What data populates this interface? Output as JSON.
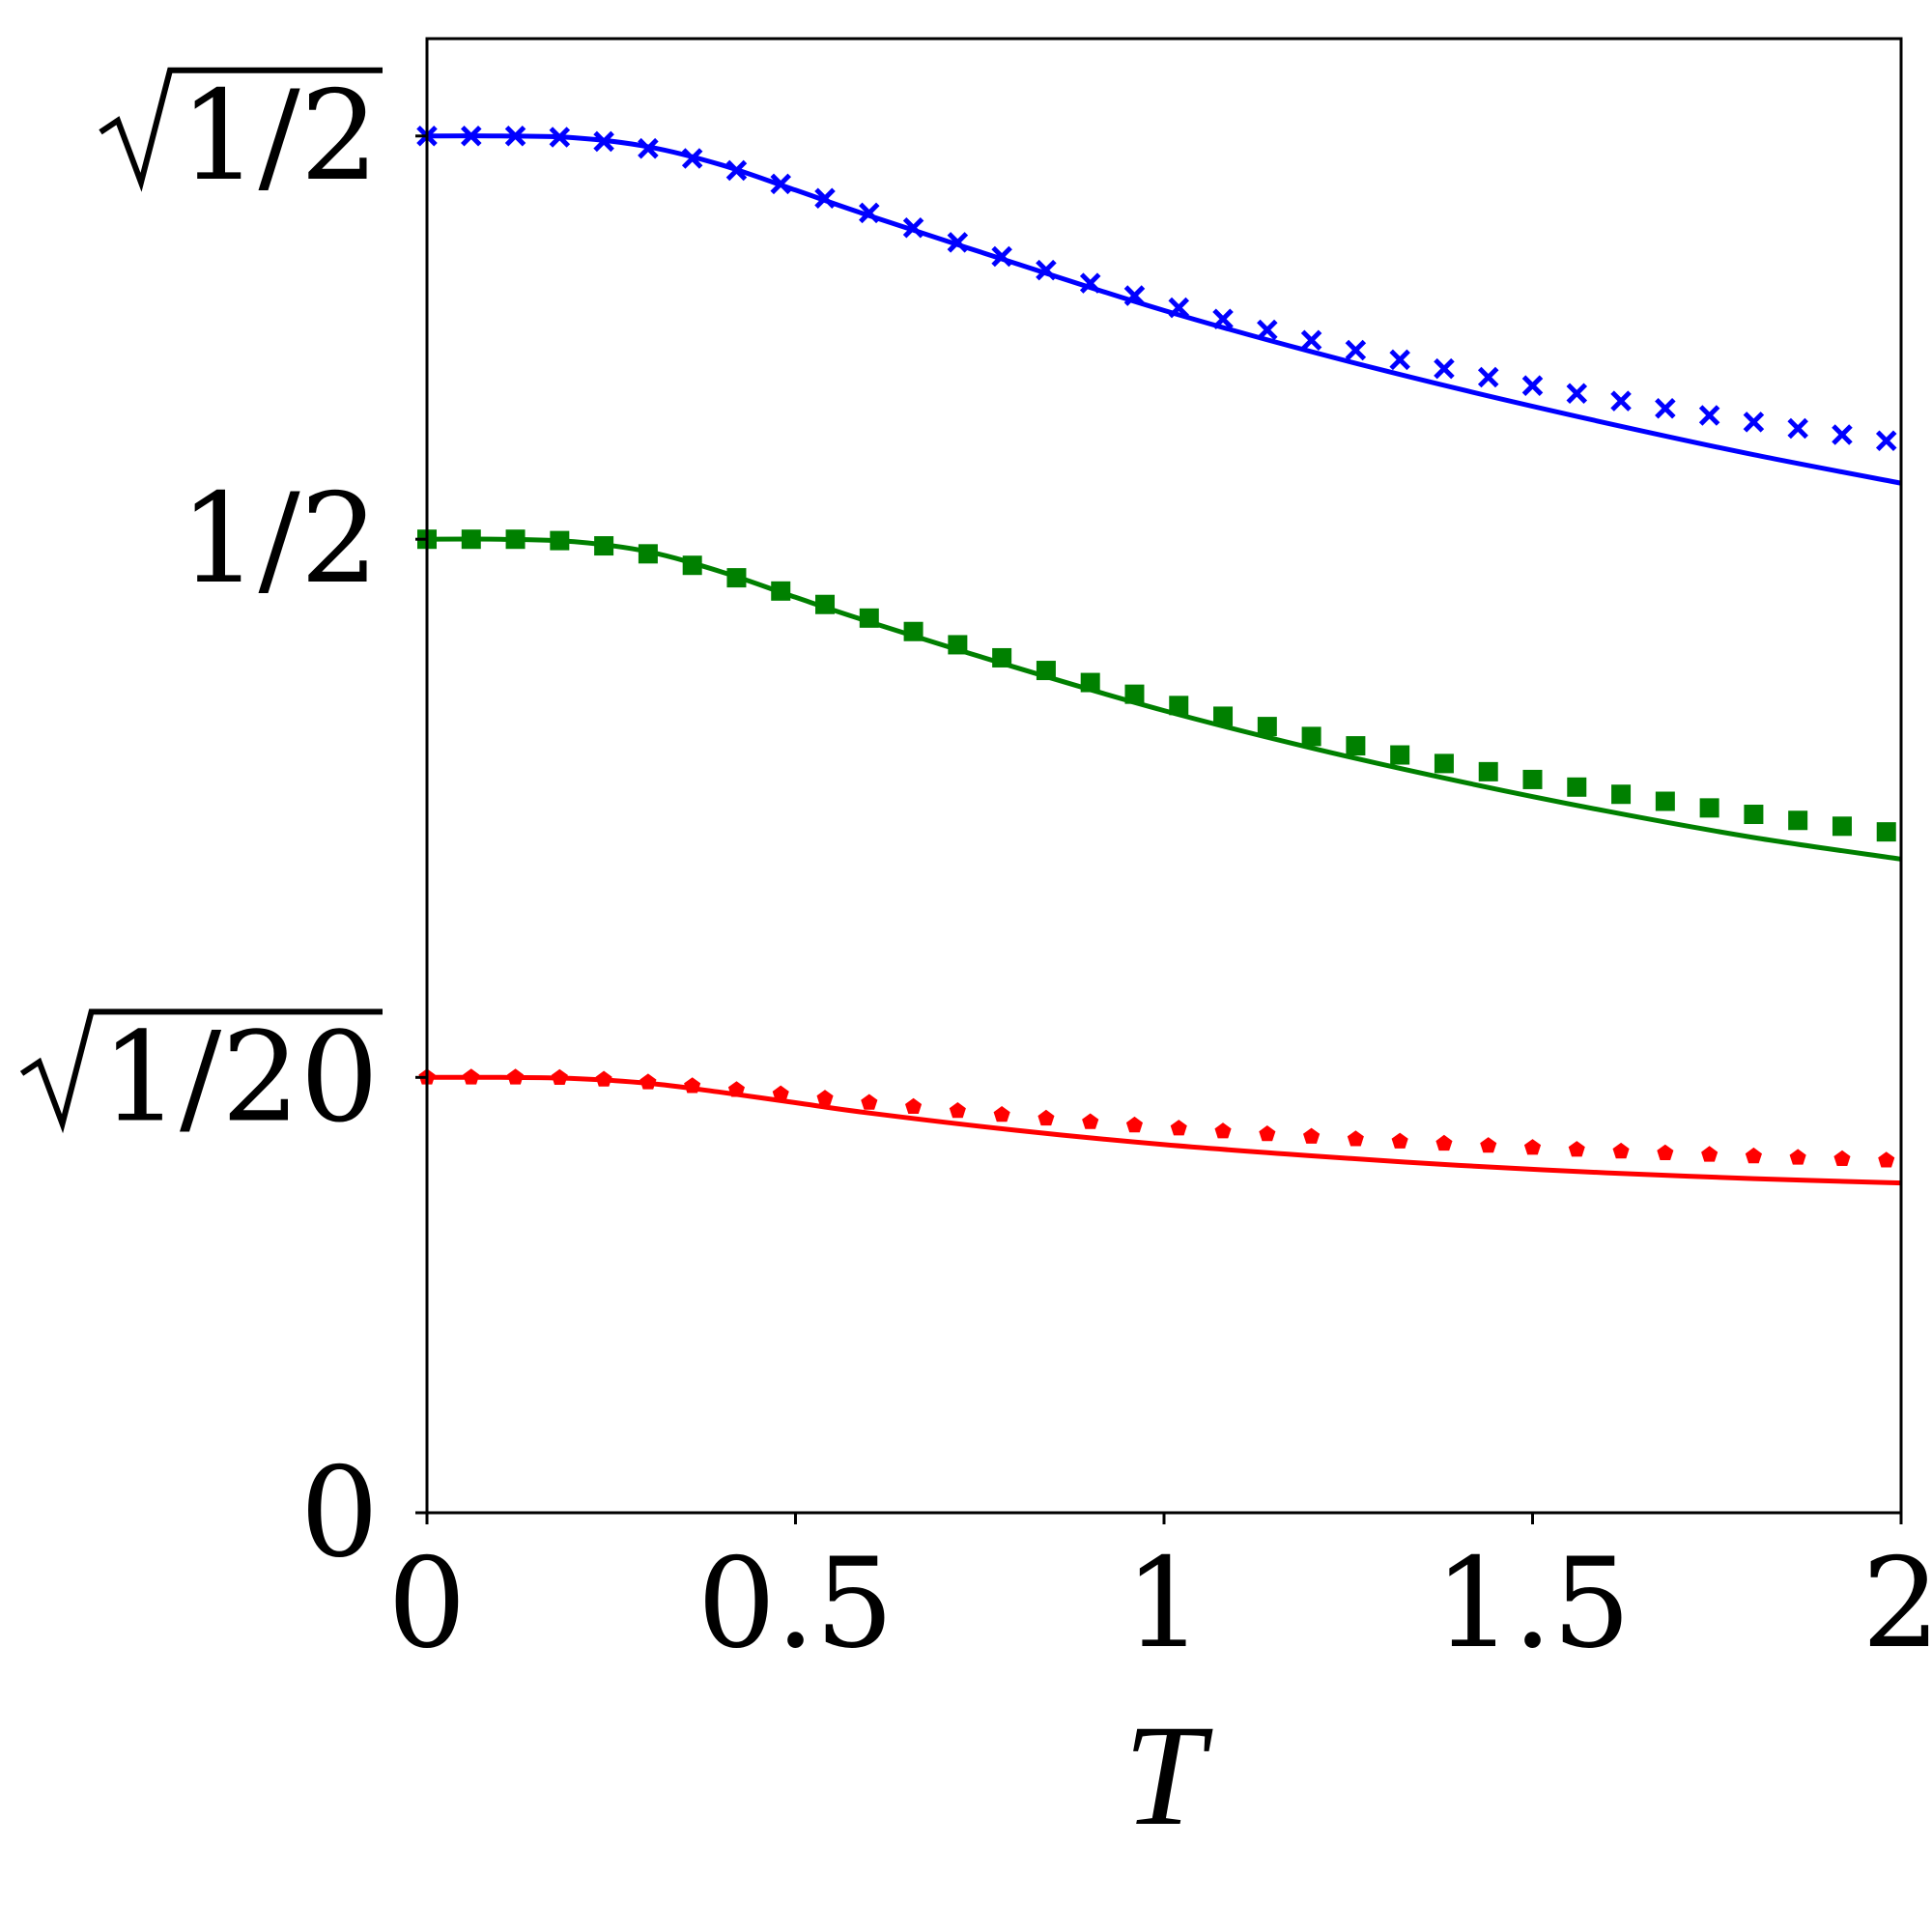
{
  "chart_data": {
    "type": "line",
    "title": "",
    "xlabel": "T",
    "ylabel": "",
    "xlim": [
      0,
      2
    ],
    "ylim": [
      0,
      0.7571
    ],
    "grid": false,
    "legend": "none",
    "xticks": [
      {
        "value": 0,
        "label": "0"
      },
      {
        "value": 0.5,
        "label": "0.5"
      },
      {
        "value": 1,
        "label": "1"
      },
      {
        "value": 1.5,
        "label": "1.5"
      },
      {
        "value": 2,
        "label": "2"
      }
    ],
    "yticks": [
      {
        "value": 0,
        "label": "0",
        "radical": false
      },
      {
        "value": 0.2236,
        "label": "1/20",
        "radical": true
      },
      {
        "value": 0.5,
        "label": "1/2",
        "radical": false
      },
      {
        "value": 0.7071,
        "label": "1/2",
        "radical": true
      }
    ],
    "curves": [
      {
        "color": "#0000ff",
        "style": "solid",
        "x": [
          0,
          0.1,
          0.2,
          0.3,
          0.4,
          0.5,
          0.6,
          0.8,
          1.0,
          1.2,
          1.4,
          1.6,
          1.8,
          2.0
        ],
        "y": [
          0.7071,
          0.7071,
          0.7062,
          0.7016,
          0.6922,
          0.6793,
          0.6662,
          0.6415,
          0.6175,
          0.5963,
          0.5772,
          0.5597,
          0.5434,
          0.5288
        ]
      },
      {
        "color": "#008000",
        "style": "solid",
        "x": [
          0,
          0.1,
          0.2,
          0.3,
          0.4,
          0.5,
          0.6,
          0.8,
          1.0,
          1.2,
          1.4,
          1.6,
          1.8,
          2.0
        ],
        "y": [
          0.5,
          0.5,
          0.4987,
          0.4936,
          0.4832,
          0.4702,
          0.4576,
          0.434,
          0.412,
          0.3928,
          0.3757,
          0.3604,
          0.3468,
          0.3357
        ]
      },
      {
        "color": "#ff0000",
        "style": "solid",
        "x": [
          0,
          0.1,
          0.2,
          0.3,
          0.4,
          0.5,
          0.6,
          0.8,
          1.0,
          1.2,
          1.4,
          1.6,
          1.8,
          2.0
        ],
        "y": [
          0.2236,
          0.2236,
          0.223,
          0.2206,
          0.2159,
          0.2106,
          0.2053,
          0.1964,
          0.1891,
          0.1833,
          0.1784,
          0.1746,
          0.1716,
          0.1694
        ]
      }
    ],
    "markers": [
      {
        "color": "#0000ff",
        "shape": "x",
        "x": [
          0,
          0.06,
          0.12,
          0.18,
          0.24,
          0.3,
          0.36,
          0.42,
          0.48,
          0.54,
          0.6,
          0.66,
          0.72,
          0.78,
          0.84,
          0.9,
          0.96,
          1.02,
          1.08,
          1.14,
          1.2,
          1.26,
          1.32,
          1.38,
          1.44,
          1.5,
          1.56,
          1.62,
          1.68,
          1.74,
          1.8,
          1.86,
          1.92,
          1.98
        ],
        "y": [
          0.7071,
          0.7071,
          0.7071,
          0.7065,
          0.7043,
          0.7007,
          0.6956,
          0.6894,
          0.6825,
          0.6751,
          0.6676,
          0.66,
          0.6525,
          0.6452,
          0.6382,
          0.6315,
          0.6251,
          0.6189,
          0.6131,
          0.6075,
          0.6022,
          0.5971,
          0.5922,
          0.5876,
          0.5832,
          0.5789,
          0.5749,
          0.571,
          0.5672,
          0.5636,
          0.5602,
          0.5569,
          0.5537,
          0.5506
        ]
      },
      {
        "color": "#008000",
        "shape": "square",
        "x": [
          0,
          0.06,
          0.12,
          0.18,
          0.24,
          0.3,
          0.36,
          0.42,
          0.48,
          0.54,
          0.6,
          0.66,
          0.72,
          0.78,
          0.84,
          0.9,
          0.96,
          1.02,
          1.08,
          1.14,
          1.2,
          1.26,
          1.32,
          1.38,
          1.44,
          1.5,
          1.56,
          1.62,
          1.68,
          1.74,
          1.8,
          1.86,
          1.92,
          1.98
        ],
        "y": [
          0.5,
          0.5,
          0.5,
          0.4993,
          0.4966,
          0.4925,
          0.4866,
          0.4802,
          0.4734,
          0.4665,
          0.4595,
          0.4526,
          0.4458,
          0.4391,
          0.4326,
          0.4264,
          0.4204,
          0.4146,
          0.4091,
          0.4038,
          0.3987,
          0.3939,
          0.3892,
          0.3848,
          0.3806,
          0.3766,
          0.3727,
          0.369,
          0.3654,
          0.362,
          0.3587,
          0.3556,
          0.3526,
          0.3497
        ]
      },
      {
        "color": "#ff0000",
        "shape": "pentagon",
        "x": [
          0,
          0.06,
          0.12,
          0.18,
          0.24,
          0.3,
          0.36,
          0.42,
          0.48,
          0.54,
          0.6,
          0.66,
          0.72,
          0.78,
          0.84,
          0.9,
          0.96,
          1.02,
          1.08,
          1.14,
          1.2,
          1.26,
          1.32,
          1.38,
          1.44,
          1.5,
          1.56,
          1.62,
          1.68,
          1.74,
          1.8,
          1.86,
          1.92,
          1.98
        ],
        "y": [
          0.2236,
          0.2236,
          0.2236,
          0.2234,
          0.2225,
          0.2211,
          0.2192,
          0.2172,
          0.215,
          0.2128,
          0.2106,
          0.2085,
          0.2064,
          0.2044,
          0.2025,
          0.2007,
          0.199,
          0.1974,
          0.1959,
          0.1945,
          0.1932,
          0.1919,
          0.1907,
          0.1896,
          0.1885,
          0.1875,
          0.1865,
          0.1856,
          0.1847,
          0.1839,
          0.1831,
          0.1824,
          0.1817,
          0.181
        ]
      }
    ]
  }
}
